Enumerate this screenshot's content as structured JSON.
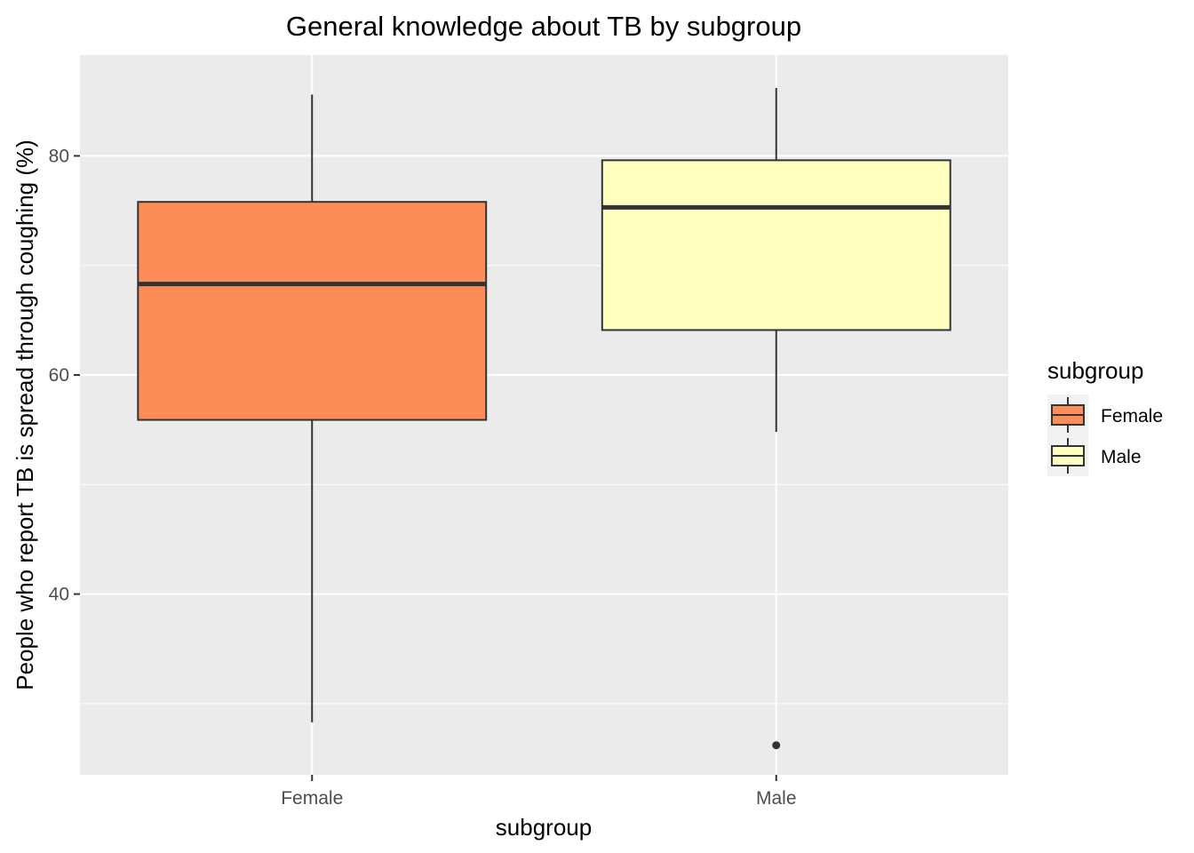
{
  "chart_data": {
    "type": "box",
    "title": "General knowledge about TB by subgroup",
    "xlabel": "subgroup",
    "ylabel": "People who report TB is spread through coughing (%)",
    "categories": [
      "Female",
      "Male"
    ],
    "ylim": [
      23.5,
      89.2
    ],
    "yticks": [
      40,
      60,
      80
    ],
    "grid": true,
    "legend_position": "right",
    "legend": {
      "title": "subgroup",
      "items": [
        "Female",
        "Male"
      ]
    },
    "series": [
      {
        "name": "Female",
        "color": "#FC8D59",
        "whisker_low": 28.3,
        "q1": 55.9,
        "median": 68.3,
        "q3": 75.8,
        "whisker_high": 85.6,
        "outliers": []
      },
      {
        "name": "Male",
        "color": "#FFFFBF",
        "whisker_low": 54.8,
        "q1": 64.1,
        "median": 75.3,
        "q3": 79.6,
        "whisker_high": 86.2,
        "outliers": [
          26.2
        ]
      }
    ],
    "panel_background": "#EBEBEB",
    "grid_color": "#FFFFFF",
    "box_outline_color": "#333333"
  }
}
